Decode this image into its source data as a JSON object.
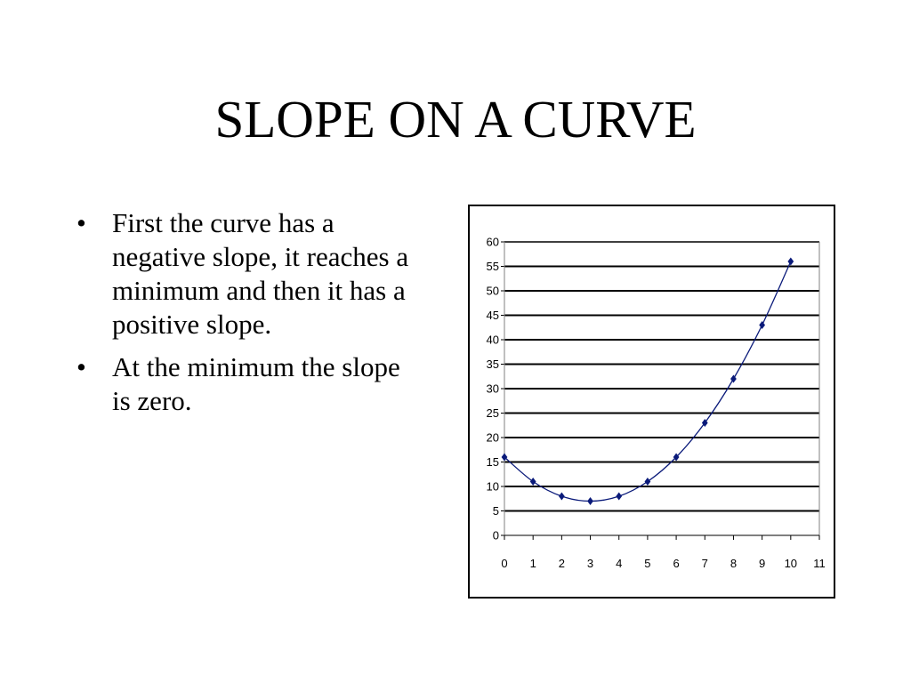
{
  "slide": {
    "title": "SLOPE ON A CURVE",
    "bullet_symbol": "•",
    "bullets": [
      "First the curve has a negative slope, it reaches a minimum and then it has a positive slope.",
      "At the minimum the slope is zero."
    ]
  },
  "chart_data": {
    "type": "line",
    "title": "",
    "xlabel": "",
    "ylabel": "",
    "x_ticks": [
      "0",
      "1",
      "2",
      "3",
      "4",
      "5",
      "6",
      "7",
      "8",
      "9",
      "10",
      "11"
    ],
    "y_ticks": [
      "0",
      "5",
      "10",
      "15",
      "20",
      "25",
      "30",
      "35",
      "40",
      "45",
      "50",
      "55",
      "60"
    ],
    "xlim": [
      0,
      11
    ],
    "ylim": [
      0,
      60
    ],
    "grid": "horizontal",
    "legend": "none",
    "marker": "diamond",
    "series": [
      {
        "x": [
          0,
          1,
          2,
          3,
          4,
          5,
          6,
          7,
          8,
          9,
          10
        ],
        "y": [
          16,
          11,
          8,
          7,
          8,
          11,
          16,
          23,
          32,
          43,
          56
        ],
        "color": "#0a1a7a"
      }
    ]
  }
}
